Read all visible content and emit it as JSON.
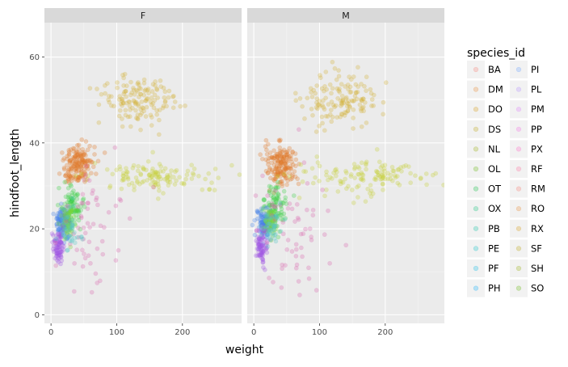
{
  "chart_data": {
    "type": "scatter",
    "facet_by": "sex",
    "panels": [
      "F",
      "M"
    ],
    "xlabel": "weight",
    "ylabel": "hindfoot_length",
    "xlim": [
      -10,
      290
    ],
    "ylim": [
      -2,
      68
    ],
    "x_ticks": [
      0,
      100,
      200
    ],
    "y_ticks": [
      0,
      20,
      40,
      60
    ],
    "grid": true,
    "point_alpha": 0.12,
    "legend": {
      "title": "species_id",
      "position": "right",
      "columns": 2,
      "entries": [
        {
          "label": "BA",
          "color": "#f8766d"
        },
        {
          "label": "DM",
          "color": "#e88526"
        },
        {
          "label": "DO",
          "color": "#d39200"
        },
        {
          "label": "DS",
          "color": "#b79f00"
        },
        {
          "label": "NL",
          "color": "#93aa00"
        },
        {
          "label": "OL",
          "color": "#5eb300"
        },
        {
          "label": "OT",
          "color": "#00ba38"
        },
        {
          "label": "OX",
          "color": "#00bf74"
        },
        {
          "label": "PB",
          "color": "#00c19f"
        },
        {
          "label": "PE",
          "color": "#00bfc4"
        },
        {
          "label": "PF",
          "color": "#00b9e3"
        },
        {
          "label": "PH",
          "color": "#00adfa"
        },
        {
          "label": "PI",
          "color": "#619cff"
        },
        {
          "label": "PL",
          "color": "#ae87ff"
        },
        {
          "label": "PM",
          "color": "#db72fb"
        },
        {
          "label": "PP",
          "color": "#f564e3"
        },
        {
          "label": "PX",
          "color": "#ff61c3"
        },
        {
          "label": "RF",
          "color": "#ff699c"
        },
        {
          "label": "RM",
          "color": "#f8766d"
        },
        {
          "label": "RO",
          "color": "#e88526"
        },
        {
          "label": "RX",
          "color": "#d39200"
        },
        {
          "label": "SF",
          "color": "#b79f00"
        },
        {
          "label": "SH",
          "color": "#93aa00"
        },
        {
          "label": "SO",
          "color": "#5eb300"
        }
      ]
    },
    "clusters": [
      {
        "label": "DS",
        "color": "#d4b23a",
        "x_range": [
          70,
          190
        ],
        "y_range": [
          44,
          56
        ],
        "count_F": 140,
        "count_M": 140
      },
      {
        "label": "DM/DO",
        "color": "#e07a2a",
        "x_range": [
          20,
          65
        ],
        "y_range": [
          30,
          40
        ],
        "count_F": 170,
        "count_M": 170
      },
      {
        "label": "NL",
        "color": "#c7d23a",
        "x_range": [
          60,
          270
        ],
        "y_range": [
          28,
          36
        ],
        "count_F": 130,
        "count_M": 130
      },
      {
        "label": "PB",
        "color": "#3fcf4a",
        "x_range": [
          15,
          50
        ],
        "y_range": [
          20,
          30
        ],
        "count_F": 90,
        "count_M": 90
      },
      {
        "label": "PP",
        "color": "#4a86e8",
        "x_range": [
          5,
          30
        ],
        "y_range": [
          18,
          25
        ],
        "count_F": 110,
        "count_M": 110
      },
      {
        "label": "OT",
        "color": "#7bd63a",
        "x_range": [
          15,
          35
        ],
        "y_range": [
          18,
          25
        ],
        "count_F": 60,
        "count_M": 60
      },
      {
        "label": "PF",
        "color": "#a35be6",
        "x_range": [
          3,
          20
        ],
        "y_range": [
          12,
          20
        ],
        "count_F": 80,
        "count_M": 80
      },
      {
        "label": "RM",
        "color": "#d96bb0",
        "x_range": [
          5,
          110
        ],
        "y_range": [
          5,
          36
        ],
        "count_F": 60,
        "count_M": 60
      },
      {
        "label": "PE",
        "color": "#5bc6c6",
        "x_range": [
          10,
          45
        ],
        "y_range": [
          15,
          25
        ],
        "count_F": 40,
        "count_M": 40
      }
    ]
  }
}
